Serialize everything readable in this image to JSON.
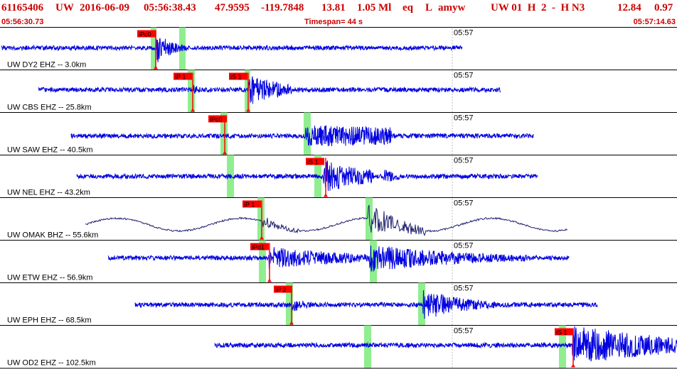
{
  "header": {
    "event_id": "61165406",
    "network": "UW",
    "date": "2016-06-09",
    "time": "05:56:38.43",
    "lat": "47.9595",
    "lon": "-119.7848",
    "depth": "13.81",
    "magnitude": "1.05 Ml",
    "event_type": "eq",
    "flag": "L",
    "author": "amyw",
    "extra": "UW 01  H  2  -  H N3",
    "val1": "12.84",
    "val2": "0.97"
  },
  "time_bar": {
    "start": "05:56:30.73",
    "timespan_label": "Timespan=",
    "timespan_value": "44 s",
    "end": "05:57:14.63"
  },
  "colors": {
    "header": "#cc0000",
    "trace": "#0000e0",
    "trace_alt": "#1e1e6e",
    "pick_flag": "#ff0000",
    "window": "#90ee90",
    "divider": "#000000"
  },
  "tick_label": "05:57",
  "icons": [
    "pick-flag-icon",
    "pick-marker-icon"
  ],
  "traces": [
    {
      "label": "UW DY2 EHZ -- 3.0km",
      "picks": [
        {
          "text": "iPc0"
        }
      ],
      "amplitude": "high",
      "color": "trace"
    },
    {
      "label": "UW CBS EHZ -- 25.8km",
      "picks": [
        {
          "text": "iP 1"
        },
        {
          "text": "iS 1"
        }
      ],
      "amplitude": "medium",
      "color": "trace"
    },
    {
      "label": "UW SAW EHZ -- 40.5km",
      "picks": [
        {
          "text": "iPc0"
        }
      ],
      "amplitude": "high",
      "color": "trace"
    },
    {
      "label": "UW NEL EHZ -- 43.2km",
      "picks": [
        {
          "text": "iS 1"
        }
      ],
      "amplitude": "high",
      "color": "trace"
    },
    {
      "label": "UW OMAK BHZ -- 55.6km",
      "picks": [
        {
          "text": "iP 1"
        }
      ],
      "amplitude": "low",
      "color": "trace_alt"
    },
    {
      "label": "UW ETW EHZ -- 56.9km",
      "picks": [
        {
          "text": "iPd1"
        }
      ],
      "amplitude": "high",
      "color": "trace"
    },
    {
      "label": "UW EPH EHZ -- 68.5km",
      "picks": [
        {
          "text": "iP 2"
        }
      ],
      "amplitude": "high",
      "color": "trace"
    },
    {
      "label": "UW OD2 EHZ -- 102.5km",
      "picks": [
        {
          "text": "iS 1"
        }
      ],
      "amplitude": "high",
      "color": "trace"
    }
  ]
}
